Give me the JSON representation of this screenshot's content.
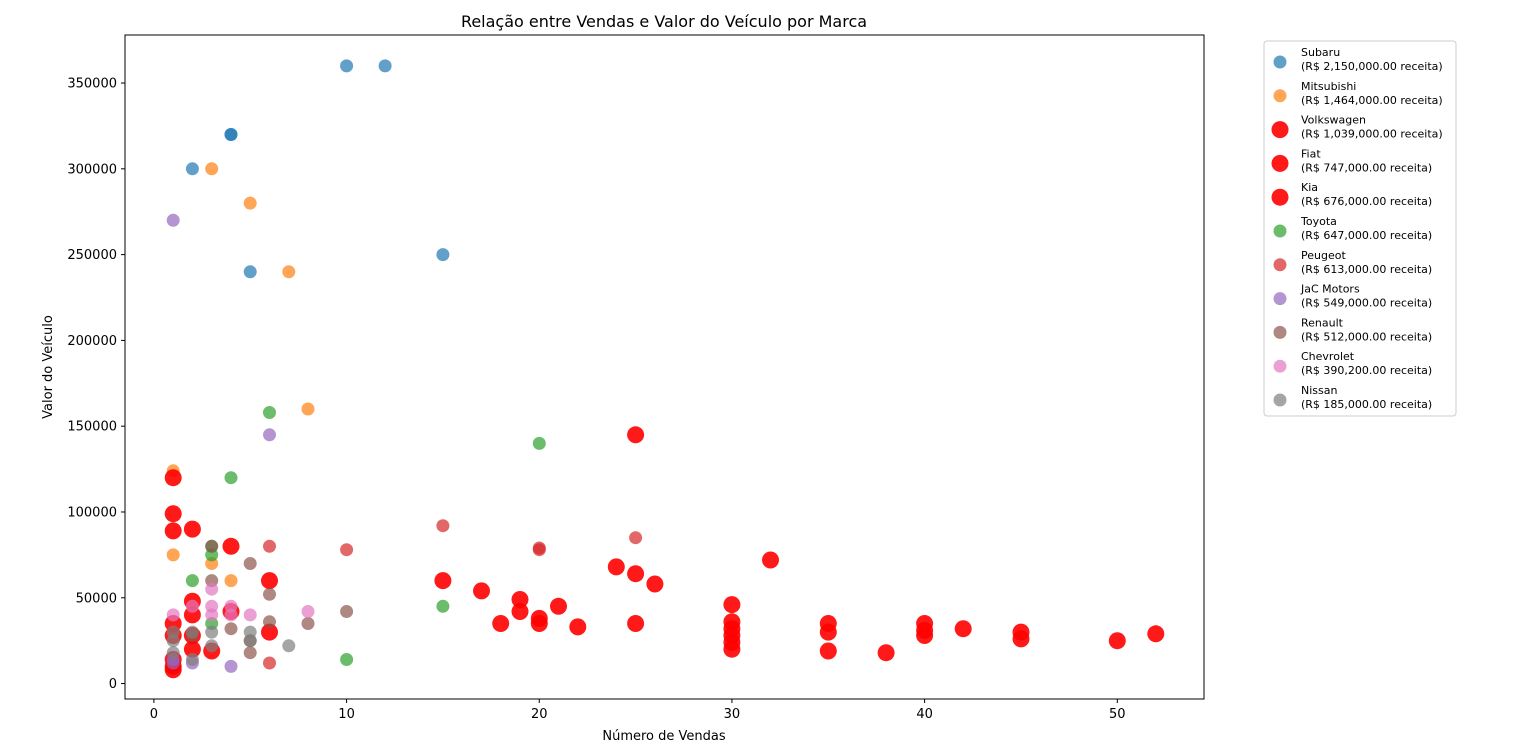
{
  "chart_data": {
    "type": "scatter",
    "title": "Relação entre Vendas e Valor do Veículo por Marca",
    "xlabel": "Número de Vendas",
    "ylabel": "Valor do Veículo",
    "xlim": [
      -1.5,
      54.5
    ],
    "ylim": [
      -9000,
      378000
    ],
    "xticks": [
      0,
      10,
      20,
      30,
      40,
      50
    ],
    "yticks": [
      0,
      50000,
      100000,
      150000,
      200000,
      250000,
      300000,
      350000
    ],
    "grid": false,
    "legend_position": "outside-top-right",
    "series": [
      {
        "name": "Subaru",
        "revenue_label": "(R$ 2,150,000.00 receita)",
        "color": "#1f77b4",
        "alpha": 0.7,
        "size": "small",
        "points": [
          [
            10,
            360000
          ],
          [
            12,
            360000
          ],
          [
            4,
            320000
          ],
          [
            4,
            320000
          ],
          [
            2,
            300000
          ],
          [
            5,
            240000
          ],
          [
            15,
            250000
          ]
        ]
      },
      {
        "name": "Mitsubishi",
        "revenue_label": "(R$ 1,464,000.00 receita)",
        "color": "#ff7f0e",
        "alpha": 0.7,
        "size": "small",
        "points": [
          [
            3,
            300000
          ],
          [
            5,
            280000
          ],
          [
            7,
            240000
          ],
          [
            8,
            160000
          ],
          [
            1,
            124000
          ],
          [
            1,
            75000
          ],
          [
            3,
            70000
          ],
          [
            4,
            60000
          ]
        ]
      },
      {
        "name": "Volkswagen",
        "revenue_label": "(R$ 1,039,000.00 receita)",
        "color": "#ff0000",
        "alpha": 0.9,
        "size": "large",
        "points": [
          [
            1,
            120000
          ],
          [
            1,
            99000
          ],
          [
            2,
            90000
          ],
          [
            4,
            80000
          ],
          [
            6,
            60000
          ],
          [
            15,
            60000
          ],
          [
            2,
            48000
          ],
          [
            4,
            42000
          ],
          [
            1,
            35000
          ],
          [
            2,
            28000
          ],
          [
            6,
            30000
          ],
          [
            25,
            145000
          ],
          [
            32,
            72000
          ],
          [
            24,
            68000
          ],
          [
            26,
            58000
          ],
          [
            17,
            54000
          ],
          [
            19,
            49000
          ],
          [
            21,
            45000
          ],
          [
            30,
            46000
          ],
          [
            40,
            28000
          ]
        ]
      },
      {
        "name": "Fiat",
        "revenue_label": "(R$ 747,000.00 receita)",
        "color": "#ff0000",
        "alpha": 0.9,
        "size": "large",
        "points": [
          [
            1,
            89000
          ],
          [
            2,
            40000
          ],
          [
            1,
            28000
          ],
          [
            2,
            20000
          ],
          [
            3,
            19000
          ],
          [
            1,
            14000
          ],
          [
            25,
            64000
          ],
          [
            19,
            42000
          ],
          [
            20,
            38000
          ],
          [
            20,
            35000
          ],
          [
            18,
            35000
          ],
          [
            22,
            33000
          ],
          [
            25,
            35000
          ],
          [
            30,
            36000
          ],
          [
            30,
            32000
          ],
          [
            30,
            28000
          ],
          [
            35,
            35000
          ],
          [
            35,
            30000
          ],
          [
            40,
            35000
          ],
          [
            42,
            32000
          ],
          [
            45,
            30000
          ],
          [
            45,
            26000
          ]
        ]
      },
      {
        "name": "Kia",
        "revenue_label": "(R$ 676,000.00 receita)",
        "color": "#ff0000",
        "alpha": 0.9,
        "size": "large",
        "points": [
          [
            1,
            10000
          ],
          [
            1,
            8000
          ],
          [
            30,
            20000
          ],
          [
            35,
            19000
          ],
          [
            38,
            18000
          ],
          [
            40,
            31000
          ],
          [
            50,
            25000
          ],
          [
            52,
            29000
          ],
          [
            30,
            24000
          ]
        ]
      },
      {
        "name": "Toyota",
        "revenue_label": "(R$ 647,000.00 receita)",
        "color": "#2ca02c",
        "alpha": 0.7,
        "size": "small",
        "points": [
          [
            6,
            158000
          ],
          [
            20,
            140000
          ],
          [
            4,
            120000
          ],
          [
            3,
            80000
          ],
          [
            3,
            75000
          ],
          [
            2,
            60000
          ],
          [
            15,
            45000
          ],
          [
            3,
            35000
          ],
          [
            10,
            14000
          ]
        ]
      },
      {
        "name": "Peugeot",
        "revenue_label": "(R$ 613,000.00 receita)",
        "color": "#d62728",
        "alpha": 0.7,
        "size": "small",
        "points": [
          [
            15,
            92000
          ],
          [
            25,
            85000
          ],
          [
            6,
            80000
          ],
          [
            10,
            78000
          ],
          [
            20,
            79000
          ],
          [
            20,
            78000
          ],
          [
            6,
            12000
          ]
        ]
      },
      {
        "name": "JaC Motors",
        "revenue_label": "(R$ 549,000.00 receita)",
        "color": "#9467bd",
        "alpha": 0.7,
        "size": "small",
        "points": [
          [
            1,
            270000
          ],
          [
            6,
            145000
          ],
          [
            1,
            14000
          ],
          [
            2,
            12000
          ],
          [
            4,
            10000
          ],
          [
            1,
            12000
          ]
        ]
      },
      {
        "name": "Renault",
        "revenue_label": "(R$ 512,000.00 receita)",
        "color": "#8c564b",
        "alpha": 0.7,
        "size": "small",
        "points": [
          [
            3,
            80000
          ],
          [
            5,
            70000
          ],
          [
            3,
            60000
          ],
          [
            6,
            52000
          ],
          [
            10,
            42000
          ],
          [
            8,
            35000
          ],
          [
            6,
            36000
          ],
          [
            4,
            32000
          ],
          [
            2,
            28000
          ],
          [
            5,
            25000
          ],
          [
            5,
            18000
          ]
        ]
      },
      {
        "name": "Chevrolet",
        "revenue_label": "(R$ 390,200.00 receita)",
        "color": "#e377c2",
        "alpha": 0.7,
        "size": "small",
        "points": [
          [
            3,
            55000
          ],
          [
            2,
            45000
          ],
          [
            3,
            45000
          ],
          [
            4,
            45000
          ],
          [
            3,
            40000
          ],
          [
            4,
            40000
          ],
          [
            5,
            40000
          ],
          [
            8,
            42000
          ],
          [
            1,
            40000
          ]
        ]
      },
      {
        "name": "Nissan",
        "revenue_label": "(R$ 185,000.00 receita)",
        "color": "#7f7f7f",
        "alpha": 0.7,
        "size": "small",
        "points": [
          [
            1,
            30000
          ],
          [
            2,
            30000
          ],
          [
            3,
            30000
          ],
          [
            5,
            30000
          ],
          [
            1,
            25000
          ],
          [
            5,
            25000
          ],
          [
            3,
            22000
          ],
          [
            7,
            22000
          ],
          [
            1,
            18000
          ],
          [
            2,
            14000
          ]
        ]
      }
    ]
  }
}
